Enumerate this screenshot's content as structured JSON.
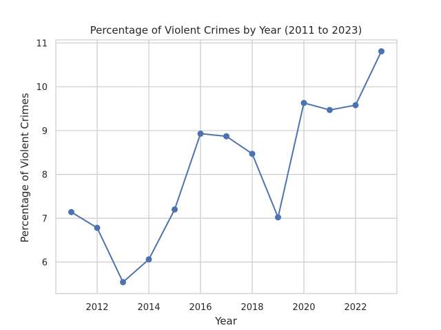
{
  "chart_data": {
    "type": "line",
    "title": "Percentage of Violent Crimes by Year (2011 to 2023)",
    "xlabel": "Year",
    "ylabel": "Percentage of Violent Crimes",
    "x": [
      2011,
      2012,
      2013,
      2014,
      2015,
      2016,
      2017,
      2018,
      2019,
      2020,
      2021,
      2022,
      2023
    ],
    "series": [
      {
        "values": [
          7.14,
          6.78,
          5.54,
          6.06,
          7.2,
          8.93,
          8.87,
          8.47,
          7.02,
          9.63,
          9.47,
          9.58,
          10.81
        ],
        "color": "#4c72b0"
      }
    ],
    "xticks": [
      "2012",
      "2014",
      "2016",
      "2018",
      "2020",
      "2022"
    ],
    "yticks": [
      "6",
      "7",
      "8",
      "9",
      "10",
      "11"
    ],
    "xlim": [
      2010.4,
      2023.6
    ],
    "ylim": [
      5.28,
      11.07
    ],
    "grid": true,
    "marker": "circle"
  }
}
